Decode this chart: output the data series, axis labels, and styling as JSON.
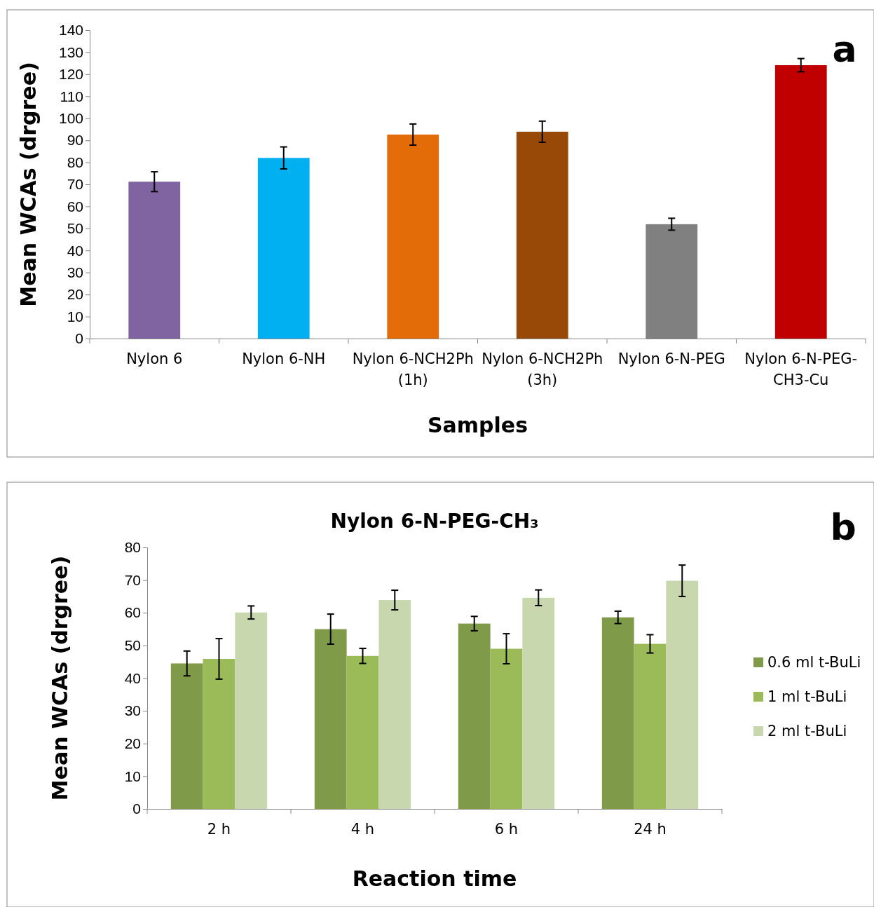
{
  "chart_data": [
    {
      "type": "bar",
      "xlabel": "Samples",
      "ylabel": "Mean WCAs (drgree)",
      "annotations": [
        "a"
      ],
      "categories": [
        "Nylon 6",
        "Nylon 6-NH",
        "Nylon 6-NCH2Ph (1h)",
        "Nylon 6-NCH2Ph (3h)",
        "Nylon 6-N-PEG",
        "Nylon 6-N-PEG-CH3-Cu"
      ],
      "values": [
        71.2,
        82,
        92.6,
        93.9,
        51.9,
        124.1
      ],
      "colors": [
        "#8064a2",
        "#00b0f0",
        "#e36c09",
        "#984807",
        "#808080",
        "#c00000"
      ],
      "errors": [
        4.5,
        5,
        4.8,
        4.8,
        2.7,
        3
      ],
      "ylim": [
        0,
        140
      ],
      "yticks": [
        0,
        10,
        20,
        30,
        40,
        50,
        60,
        70,
        80,
        90,
        100,
        110,
        120,
        130,
        140
      ],
      "legend": false
    },
    {
      "type": "bar",
      "title": "Nylon 6-N-PEG-CH₃",
      "xlabel": "Reaction time",
      "ylabel": "Mean WCAs (drgree)",
      "annotations": [
        "b"
      ],
      "categories": [
        "2 h",
        "4 h",
        "6 h",
        "24 h"
      ],
      "series": [
        {
          "name": "0.6 ml t-BuLi",
          "color": "#7f9a48",
          "values": [
            44.5,
            55,
            56.7,
            58.6
          ],
          "errors": [
            3.8,
            4.6,
            2.2,
            1.9
          ]
        },
        {
          "name": "1 ml t-BuLi",
          "color": "#9bbb59",
          "values": [
            45.9,
            46.8,
            49,
            50.5
          ],
          "errors": [
            6.2,
            2.3,
            4.6,
            2.8
          ]
        },
        {
          "name": "2 ml t-BuLi",
          "color": "#c8d7ad",
          "values": [
            60.1,
            63.9,
            64.6,
            69.8
          ],
          "errors": [
            2,
            3,
            2.4,
            4.8
          ]
        }
      ],
      "ylim": [
        0,
        80
      ],
      "yticks": [
        0,
        10,
        20,
        30,
        40,
        50,
        60,
        70,
        80
      ],
      "legend": "right"
    }
  ]
}
